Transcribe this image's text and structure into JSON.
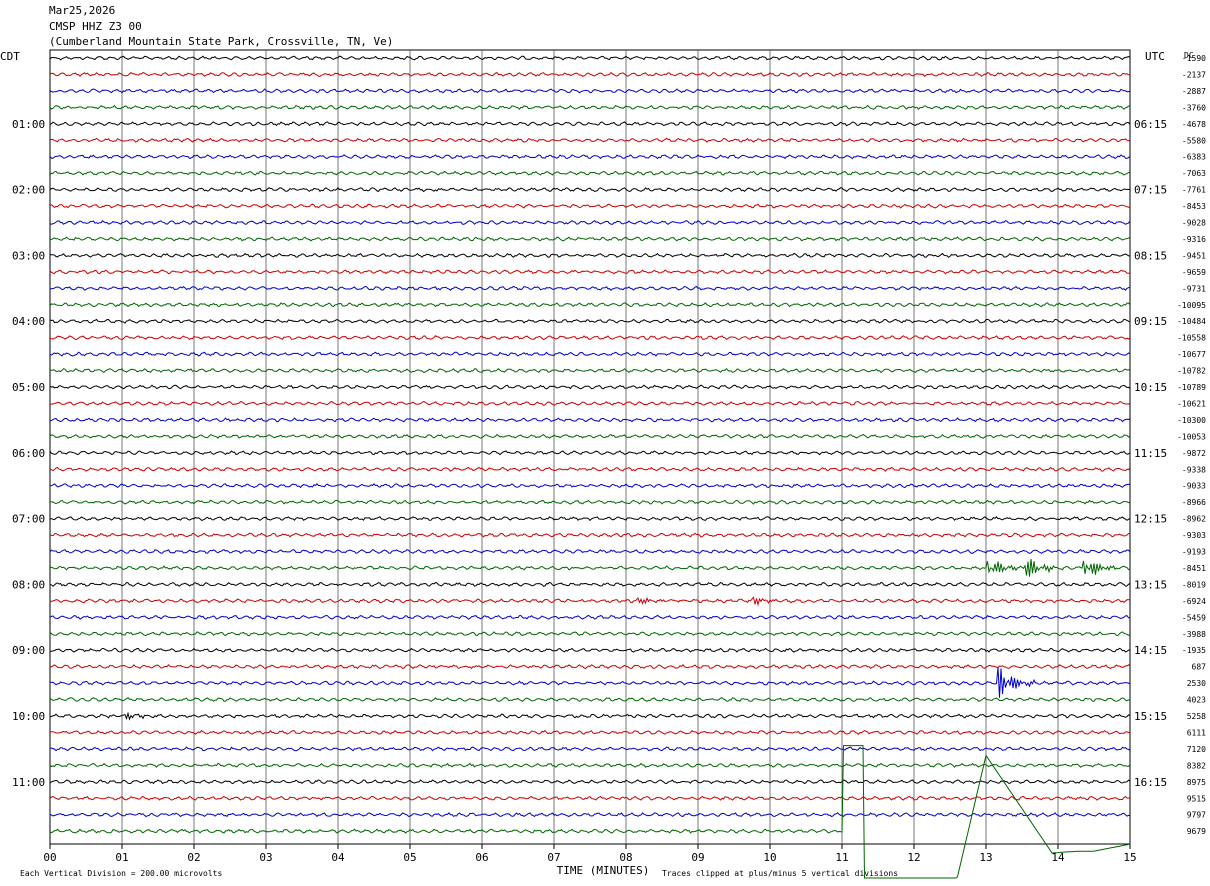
{
  "header": {
    "date": "Mar25,2026",
    "station": "CMSP HHZ Z3 00",
    "location": "(Cumberland Mountain State Park, Crossville, TN, Ve)"
  },
  "chart_data": {
    "type": "line",
    "title": "CMSP HHZ Z3 00",
    "left_axis_label": "CDT",
    "right_axis_label": "UTC",
    "right_column_label": "DC",
    "left_time_labels": [
      "01:00",
      "02:00",
      "03:00",
      "04:00",
      "05:00",
      "06:00",
      "07:00",
      "08:00",
      "09:00",
      "10:00",
      "11:00"
    ],
    "right_time_labels": [
      "06:15",
      "07:15",
      "08:15",
      "09:15",
      "10:15",
      "11:15",
      "12:15",
      "13:15",
      "14:15",
      "15:15",
      "16:15"
    ],
    "x_ticks": [
      "00",
      "01",
      "02",
      "03",
      "04",
      "05",
      "06",
      "07",
      "08",
      "09",
      "10",
      "11",
      "12",
      "13",
      "14",
      "15"
    ],
    "xlabel": "TIME (MINUTES)",
    "xlim": [
      0,
      15
    ],
    "rows_per_hour": 4,
    "minutes_per_row": 15,
    "trace_colors": [
      "#000000",
      "#cc0000",
      "#0000cc",
      "#006600"
    ],
    "dc_offsets": [
      "-1590",
      "-2137",
      "-2887",
      "-3760",
      "-4678",
      "-5580",
      "-6383",
      "-7063",
      "-7761",
      "-8453",
      "-9028",
      "-9316",
      "-9451",
      "-9659",
      "-9731",
      "-10095",
      "-10484",
      "-10558",
      "-10677",
      "-10782",
      "-10789",
      "-10621",
      "-10300",
      "-10053",
      "-9872",
      "-9338",
      "-9033",
      "-8966",
      "-8962",
      "-9303",
      "-9193",
      "-8451",
      "-8019",
      "-6924",
      "-5459",
      "-3988",
      "-1935",
      "687",
      "2530",
      "4023",
      "5258",
      "6111",
      "7120",
      "8382",
      "8975",
      "9515",
      "9797",
      "9679"
    ],
    "events": [
      {
        "row": 31,
        "minute": 13.05,
        "amplitude": 1.1
      },
      {
        "row": 31,
        "minute": 13.55,
        "amplitude": 1.4
      },
      {
        "row": 31,
        "minute": 14.4,
        "amplitude": 1.2
      },
      {
        "row": 33,
        "minute": 8.2,
        "amplitude": 0.35
      },
      {
        "row": 33,
        "minute": 9.8,
        "amplitude": 0.4
      },
      {
        "row": 38,
        "minute": 13.2,
        "amplitude": 1.9
      },
      {
        "row": 40,
        "minute": 1.1,
        "amplitude": 0.3
      }
    ],
    "clipped_signal": "Large clipped arrival on the final green trace beginning near 11.0 minutes, continuing across the lower rows to about 15 minutes",
    "footer_left": "Each Vertical Division =  200.00 microvolts",
    "footer_right": "Traces clipped at plus/minus 5 vertical divisions",
    "grid": true
  }
}
